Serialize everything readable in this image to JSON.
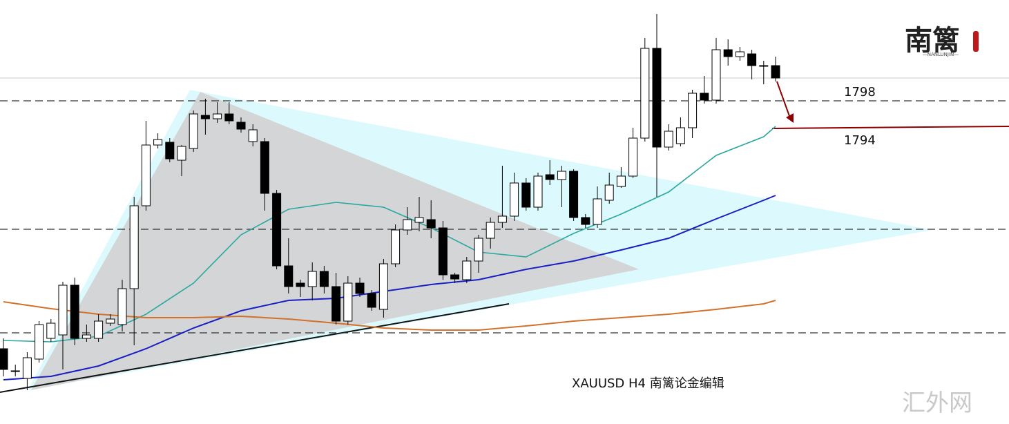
{
  "chart_data": {
    "type": "candlestick",
    "caption": "XAUUSD  H4  南篱论金编辑",
    "logo": "南篱",
    "logo_sub": "—NANLUNJIN—",
    "watermark": "汇外网",
    "ylim": [
      1751.2,
      1812.6
    ],
    "hlines": [
      1798,
      1779.4,
      1764.4
    ],
    "target": 1794,
    "open": [
      1762.1,
      1758.9,
      1757.8,
      1760.6,
      1763.6,
      1764.1,
      1771.3,
      1763.6,
      1763.6,
      1765.8,
      1765.6,
      1770.8,
      1782.8,
      1791.6,
      1792.0,
      1789.4,
      1791.1,
      1795.9,
      1795.4,
      1796.1,
      1794.9,
      1792.1,
      1792.1,
      1784.6,
      1774.1,
      1771.6,
      1771.1,
      1773.3,
      1771.1,
      1766.1,
      1771.6,
      1770.1,
      1767.8,
      1774.4,
      1779.3,
      1780.4,
      1780.8,
      1779.6,
      1772.8,
      1772.1,
      1774.8,
      1778.1,
      1780.4,
      1781.3,
      1786.1,
      1782.6,
      1787.3,
      1786.6,
      1787.8,
      1781.1,
      1780.1,
      1783.6,
      1785.6,
      1787.1,
      1792.6,
      1805.6,
      1791.3,
      1791.8,
      1794.1,
      1799.1,
      1798.1,
      1805.4,
      1804.4,
      1804.8,
      1803.1,
      1803.1
    ],
    "high": [
      1763.6,
      1759.8,
      1761.6,
      1766.1,
      1766.4,
      1771.8,
      1772.4,
      1765.6,
      1767.1,
      1767.1,
      1772.1,
      1784.1,
      1795.1,
      1793.3,
      1792.6,
      1791.6,
      1796.6,
      1798.3,
      1797.8,
      1797.8,
      1795.6,
      1794.6,
      1792.6,
      1785.1,
      1778.1,
      1772.1,
      1774.6,
      1774.1,
      1773.1,
      1772.6,
      1772.4,
      1770.6,
      1775.1,
      1780.1,
      1782.6,
      1784.1,
      1783.6,
      1780.6,
      1773.1,
      1775.4,
      1778.6,
      1781.1,
      1788.6,
      1787.6,
      1786.8,
      1787.6,
      1789.4,
      1788.6,
      1788.1,
      1781.6,
      1785.6,
      1787.6,
      1788.4,
      1794.1,
      1807.1,
      1810.6,
      1794.6,
      1795.6,
      1799.6,
      1801.6,
      1807.1,
      1806.9,
      1805.8,
      1805.4,
      1803.8,
      1804.4
    ],
    "low": [
      1758.1,
      1758.1,
      1756.1,
      1760.1,
      1763.1,
      1759.1,
      1762.6,
      1763.1,
      1763.1,
      1765.4,
      1764.6,
      1762.6,
      1782.1,
      1791.1,
      1789.1,
      1787.1,
      1790.6,
      1793.1,
      1794.8,
      1794.6,
      1793.4,
      1791.4,
      1782.1,
      1773.6,
      1770.1,
      1769.6,
      1769.1,
      1770.1,
      1765.6,
      1765.6,
      1769.6,
      1767.6,
      1766.6,
      1773.9,
      1778.6,
      1779.1,
      1778.1,
      1772.1,
      1771.6,
      1771.6,
      1773.1,
      1776.6,
      1779.6,
      1780.6,
      1782.1,
      1782.1,
      1785.8,
      1782.6,
      1780.6,
      1779.6,
      1779.6,
      1783.1,
      1785.4,
      1786.8,
      1792.1,
      1784.1,
      1790.8,
      1791.4,
      1792.6,
      1797.6,
      1797.6,
      1803.1,
      1803.8,
      1801.1,
      1800.4,
      1800.8
    ],
    "close": [
      1759.1,
      1758.9,
      1760.8,
      1765.6,
      1765.8,
      1771.3,
      1763.6,
      1764.1,
      1766.1,
      1766.4,
      1770.8,
      1782.8,
      1791.6,
      1792.4,
      1789.6,
      1791.4,
      1796.1,
      1795.4,
      1796.1,
      1795.1,
      1793.9,
      1793.8,
      1784.6,
      1774.1,
      1771.1,
      1771.1,
      1773.3,
      1771.1,
      1766.1,
      1771.6,
      1770.1,
      1768.1,
      1774.4,
      1779.3,
      1780.8,
      1781.1,
      1779.6,
      1772.8,
      1772.2,
      1774.8,
      1778.1,
      1780.4,
      1781.3,
      1786.1,
      1782.6,
      1787.1,
      1786.6,
      1787.8,
      1781.1,
      1780.1,
      1783.8,
      1785.8,
      1787.1,
      1792.6,
      1805.6,
      1791.3,
      1793.6,
      1794.1,
      1799.1,
      1798.1,
      1805.4,
      1804.4,
      1805.1,
      1803.1,
      1803.1,
      1801.3
    ],
    "series": [
      {
        "color": "#2aa7a0",
        "x": [
          0,
          4,
          8,
          12,
          16,
          20,
          24,
          28,
          32,
          36,
          40,
          44,
          48,
          52,
          56,
          60,
          64,
          65
        ],
        "values": [
          1763.3,
          1763.1,
          1763.9,
          1767.1,
          1771.6,
          1778.6,
          1782.3,
          1783.3,
          1782.6,
          1779.6,
          1776.1,
          1775.4,
          1778.8,
          1781.6,
          1784.8,
          1790.1,
          1792.8,
          1794.3
        ]
      },
      {
        "color": "#1a1fc4",
        "x": [
          0,
          4,
          8,
          12,
          16,
          20,
          24,
          28,
          32,
          36,
          40,
          44,
          48,
          52,
          56,
          60,
          64,
          65
        ],
        "values": [
          1757.6,
          1758.1,
          1759.6,
          1762.1,
          1765.1,
          1767.6,
          1769.1,
          1769.4,
          1770.4,
          1771.4,
          1772.1,
          1773.6,
          1774.8,
          1776.4,
          1778.1,
          1780.9,
          1783.6,
          1784.3
        ]
      },
      {
        "color": "#d2712a",
        "x": [
          0,
          4,
          8,
          12,
          16,
          20,
          24,
          28,
          32,
          36,
          40,
          44,
          48,
          52,
          56,
          60,
          64,
          65
        ],
        "values": [
          1768.9,
          1767.9,
          1767.1,
          1766.6,
          1766.6,
          1766.8,
          1766.4,
          1765.8,
          1765.1,
          1764.8,
          1764.8,
          1765.4,
          1766.1,
          1766.6,
          1767.1,
          1767.8,
          1768.6,
          1769.1
        ]
      }
    ]
  }
}
